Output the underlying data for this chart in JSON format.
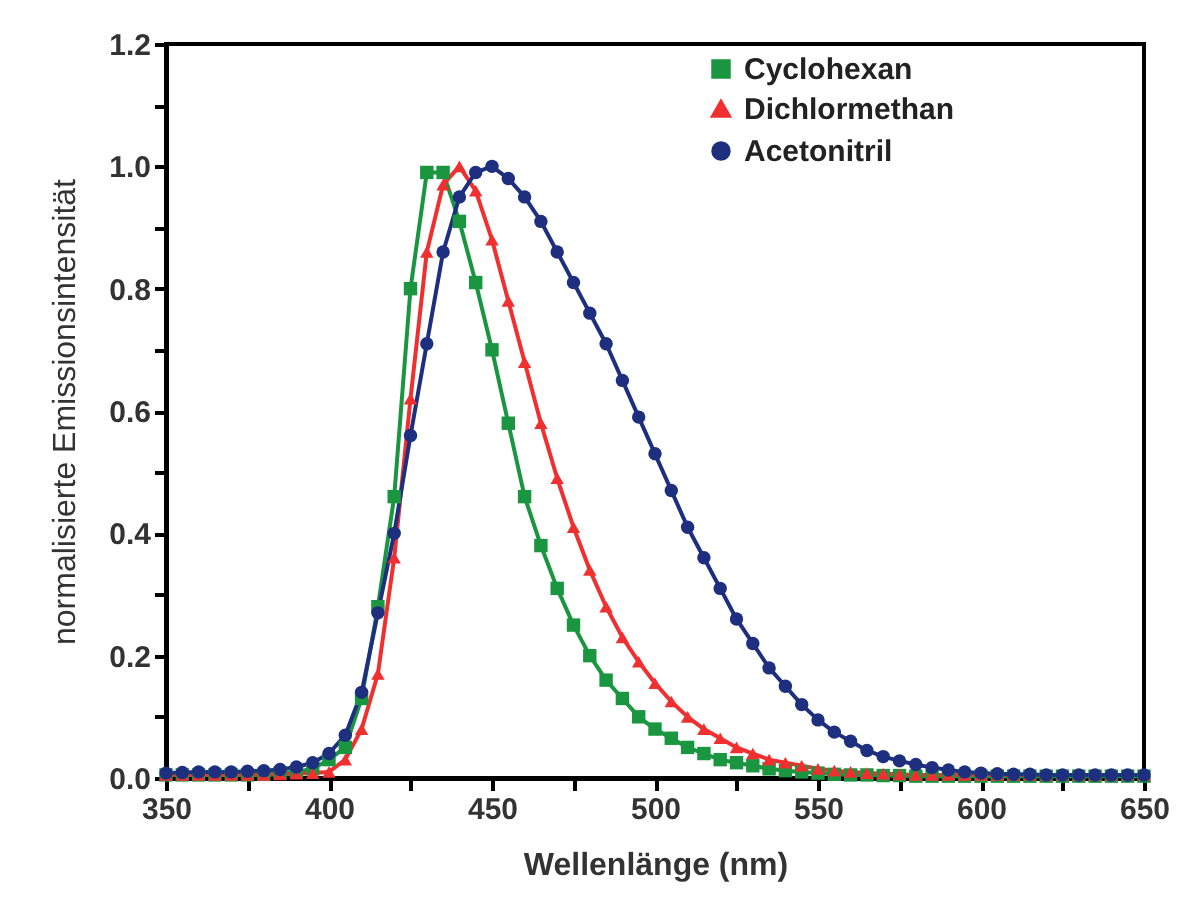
{
  "chart_data": {
    "type": "line",
    "xlabel": "Wellenlänge (nm)",
    "ylabel": "normalisierte Emissionsintensität",
    "x": [
      350,
      355,
      360,
      365,
      370,
      375,
      380,
      385,
      390,
      395,
      400,
      405,
      410,
      415,
      420,
      425,
      430,
      435,
      440,
      445,
      450,
      455,
      460,
      465,
      470,
      475,
      480,
      485,
      490,
      495,
      500,
      505,
      510,
      515,
      520,
      525,
      530,
      535,
      540,
      545,
      550,
      555,
      560,
      565,
      570,
      575,
      580,
      585,
      590,
      595,
      600,
      605,
      610,
      615,
      620,
      625,
      630,
      635,
      640,
      645,
      650
    ],
    "series": [
      {
        "name": "Cyclohexan",
        "color": "#1a9641",
        "marker": "square",
        "values": [
          0.005,
          0.005,
          0.005,
          0.005,
          0.005,
          0.005,
          0.006,
          0.008,
          0.01,
          0.015,
          0.03,
          0.05,
          0.13,
          0.28,
          0.46,
          0.8,
          0.99,
          0.99,
          0.91,
          0.81,
          0.7,
          0.58,
          0.46,
          0.38,
          0.31,
          0.25,
          0.2,
          0.16,
          0.13,
          0.1,
          0.08,
          0.065,
          0.05,
          0.04,
          0.03,
          0.025,
          0.02,
          0.015,
          0.012,
          0.01,
          0.008,
          0.006,
          0.005,
          0.005,
          0.004,
          0.004,
          0.003,
          0.003,
          0.003,
          0.003,
          0.003,
          0.003,
          0.003,
          0.003,
          0.003,
          0.003,
          0.003,
          0.003,
          0.003,
          0.003,
          0.003
        ]
      },
      {
        "name": "Dichlormethan",
        "color": "#f03030",
        "marker": "triangle",
        "values": [
          0.005,
          0.005,
          0.005,
          0.005,
          0.005,
          0.005,
          0.005,
          0.006,
          0.007,
          0.008,
          0.01,
          0.03,
          0.08,
          0.17,
          0.36,
          0.62,
          0.86,
          0.97,
          1.0,
          0.96,
          0.88,
          0.78,
          0.68,
          0.58,
          0.49,
          0.41,
          0.34,
          0.28,
          0.23,
          0.19,
          0.155,
          0.125,
          0.1,
          0.08,
          0.065,
          0.05,
          0.04,
          0.03,
          0.025,
          0.02,
          0.015,
          0.012,
          0.01,
          0.008,
          0.007,
          0.006,
          0.005,
          0.005,
          0.005,
          0.005,
          0.005,
          0.005,
          0.005,
          0.005,
          0.005,
          0.005,
          0.005,
          0.005,
          0.005,
          0.005,
          0.005
        ]
      },
      {
        "name": "Acetonitril",
        "color": "#1f2f7f",
        "marker": "circle",
        "values": [
          0.008,
          0.009,
          0.01,
          0.01,
          0.01,
          0.011,
          0.012,
          0.014,
          0.018,
          0.025,
          0.04,
          0.07,
          0.14,
          0.27,
          0.4,
          0.56,
          0.71,
          0.86,
          0.95,
          0.99,
          1.0,
          0.98,
          0.95,
          0.91,
          0.86,
          0.81,
          0.76,
          0.71,
          0.65,
          0.59,
          0.53,
          0.47,
          0.41,
          0.36,
          0.31,
          0.26,
          0.22,
          0.18,
          0.15,
          0.12,
          0.095,
          0.075,
          0.06,
          0.045,
          0.035,
          0.028,
          0.022,
          0.017,
          0.013,
          0.01,
          0.008,
          0.007,
          0.006,
          0.006,
          0.005,
          0.005,
          0.005,
          0.005,
          0.005,
          0.005,
          0.005
        ]
      }
    ],
    "xlim": [
      350,
      650
    ],
    "xticks": [
      350,
      {
        "value": 375,
        "label": null
      },
      400,
      {
        "value": 425,
        "label": null
      },
      450,
      {
        "value": 475,
        "label": null
      },
      500,
      {
        "value": 525,
        "label": null
      },
      550,
      {
        "value": 575,
        "label": null
      },
      600,
      {
        "value": 625,
        "label": null
      },
      650
    ],
    "ylim": [
      0,
      1.2
    ],
    "yticks": [
      {
        "value": 0,
        "label": "0.0"
      },
      {
        "value": 0.1,
        "label": null
      },
      0.2,
      {
        "value": 0.3,
        "label": null
      },
      0.4,
      {
        "value": 0.5,
        "label": null
      },
      0.6,
      {
        "value": 0.7,
        "label": null
      },
      0.8,
      {
        "value": 0.9,
        "label": null
      },
      {
        "value": 1,
        "label": "1.0"
      },
      {
        "value": 1.1,
        "label": null
      },
      1.2
    ],
    "legend": "top right",
    "grid": false,
    "line_style": "solid"
  }
}
